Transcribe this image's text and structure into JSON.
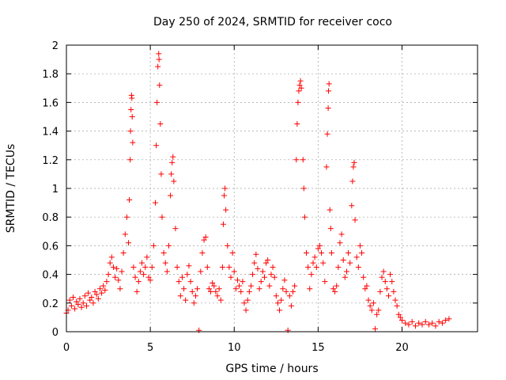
{
  "chart_data": {
    "type": "scatter",
    "title": "Day 250 of 2024, SRMTID for receiver coco",
    "xlabel": "GPS time / hours",
    "ylabel": "SRMTID / TECUs",
    "xlim": [
      0,
      24.5
    ],
    "ylim": [
      0,
      2
    ],
    "xticks": [
      0,
      5,
      10,
      15,
      20
    ],
    "xtick_labels": [
      "0",
      "5",
      "10",
      "15",
      "20"
    ],
    "yticks": [
      0,
      0.2,
      0.4,
      0.6,
      0.8,
      1,
      1.2,
      1.4,
      1.6,
      1.8,
      2
    ],
    "ytick_labels": [
      "0",
      "0.2",
      "0.4",
      "0.6",
      "0.8",
      "1",
      "1.2",
      "1.4",
      "1.6",
      "1.8",
      "2"
    ],
    "grid": true,
    "marker": "plus",
    "color": "#ff0000",
    "series": [
      {
        "name": "SRMTID",
        "points": [
          [
            0.0,
            0.13
          ],
          [
            0.1,
            0.15
          ],
          [
            0.2,
            0.22
          ],
          [
            0.3,
            0.18
          ],
          [
            0.4,
            0.24
          ],
          [
            0.5,
            0.16
          ],
          [
            0.6,
            0.21
          ],
          [
            0.7,
            0.19
          ],
          [
            0.8,
            0.23
          ],
          [
            0.9,
            0.17
          ],
          [
            1.0,
            0.2
          ],
          [
            1.1,
            0.25
          ],
          [
            1.2,
            0.18
          ],
          [
            1.3,
            0.27
          ],
          [
            1.4,
            0.22
          ],
          [
            1.5,
            0.24
          ],
          [
            1.6,
            0.2
          ],
          [
            1.7,
            0.28
          ],
          [
            1.8,
            0.26
          ],
          [
            1.9,
            0.23
          ],
          [
            2.0,
            0.3
          ],
          [
            2.1,
            0.27
          ],
          [
            2.2,
            0.32
          ],
          [
            2.3,
            0.29
          ],
          [
            2.4,
            0.35
          ],
          [
            2.5,
            0.4
          ],
          [
            2.6,
            0.48
          ],
          [
            2.7,
            0.52
          ],
          [
            2.8,
            0.45
          ],
          [
            2.9,
            0.38
          ],
          [
            3.0,
            0.44
          ],
          [
            3.1,
            0.36
          ],
          [
            3.2,
            0.3
          ],
          [
            3.3,
            0.42
          ],
          [
            3.4,
            0.55
          ],
          [
            3.5,
            0.68
          ],
          [
            3.6,
            0.8
          ],
          [
            3.7,
            0.62
          ],
          [
            3.75,
            0.92
          ],
          [
            3.8,
            1.2
          ],
          [
            3.82,
            1.4
          ],
          [
            3.85,
            1.55
          ],
          [
            3.88,
            1.65
          ],
          [
            3.9,
            1.63
          ],
          [
            3.92,
            1.5
          ],
          [
            3.95,
            1.32
          ],
          [
            4.0,
            0.45
          ],
          [
            4.1,
            0.38
          ],
          [
            4.2,
            0.28
          ],
          [
            4.3,
            0.35
          ],
          [
            4.4,
            0.42
          ],
          [
            4.5,
            0.48
          ],
          [
            4.6,
            0.4
          ],
          [
            4.7,
            0.45
          ],
          [
            4.8,
            0.52
          ],
          [
            4.9,
            0.38
          ],
          [
            5.0,
            0.36
          ],
          [
            5.1,
            0.45
          ],
          [
            5.2,
            0.6
          ],
          [
            5.3,
            0.9
          ],
          [
            5.35,
            1.3
          ],
          [
            5.4,
            1.6
          ],
          [
            5.45,
            1.85
          ],
          [
            5.5,
            1.94
          ],
          [
            5.52,
            1.9
          ],
          [
            5.55,
            1.72
          ],
          [
            5.6,
            1.45
          ],
          [
            5.65,
            1.1
          ],
          [
            5.7,
            0.8
          ],
          [
            5.8,
            0.55
          ],
          [
            5.9,
            0.48
          ],
          [
            6.0,
            0.42
          ],
          [
            6.1,
            0.6
          ],
          [
            6.2,
            0.95
          ],
          [
            6.25,
            1.1
          ],
          [
            6.3,
            1.18
          ],
          [
            6.35,
            1.22
          ],
          [
            6.4,
            1.05
          ],
          [
            6.5,
            0.72
          ],
          [
            6.6,
            0.45
          ],
          [
            6.7,
            0.35
          ],
          [
            6.8,
            0.25
          ],
          [
            6.9,
            0.38
          ],
          [
            7.0,
            0.3
          ],
          [
            7.1,
            0.22
          ],
          [
            7.2,
            0.4
          ],
          [
            7.3,
            0.46
          ],
          [
            7.4,
            0.35
          ],
          [
            7.5,
            0.28
          ],
          [
            7.6,
            0.2
          ],
          [
            7.7,
            0.25
          ],
          [
            7.8,
            0.3
          ],
          [
            7.9,
            0.01
          ],
          [
            8.0,
            0.42
          ],
          [
            8.1,
            0.55
          ],
          [
            8.2,
            0.64
          ],
          [
            8.3,
            0.66
          ],
          [
            8.4,
            0.45
          ],
          [
            8.5,
            0.3
          ],
          [
            8.6,
            0.28
          ],
          [
            8.7,
            0.34
          ],
          [
            8.8,
            0.32
          ],
          [
            8.9,
            0.28
          ],
          [
            9.0,
            0.25
          ],
          [
            9.1,
            0.3
          ],
          [
            9.2,
            0.22
          ],
          [
            9.3,
            0.45
          ],
          [
            9.35,
            0.75
          ],
          [
            9.4,
            0.95
          ],
          [
            9.45,
            1.0
          ],
          [
            9.5,
            0.85
          ],
          [
            9.6,
            0.6
          ],
          [
            9.7,
            0.45
          ],
          [
            9.8,
            0.38
          ],
          [
            9.9,
            0.55
          ],
          [
            10.0,
            0.42
          ],
          [
            10.1,
            0.3
          ],
          [
            10.2,
            0.36
          ],
          [
            10.3,
            0.32
          ],
          [
            10.4,
            0.28
          ],
          [
            10.5,
            0.35
          ],
          [
            10.6,
            0.2
          ],
          [
            10.7,
            0.15
          ],
          [
            10.8,
            0.22
          ],
          [
            10.9,
            0.28
          ],
          [
            11.0,
            0.32
          ],
          [
            11.1,
            0.4
          ],
          [
            11.2,
            0.48
          ],
          [
            11.3,
            0.54
          ],
          [
            11.4,
            0.44
          ],
          [
            11.5,
            0.3
          ],
          [
            11.6,
            0.35
          ],
          [
            11.7,
            0.42
          ],
          [
            11.8,
            0.38
          ],
          [
            11.9,
            0.48
          ],
          [
            12.0,
            0.5
          ],
          [
            12.1,
            0.32
          ],
          [
            12.2,
            0.4
          ],
          [
            12.3,
            0.45
          ],
          [
            12.4,
            0.38
          ],
          [
            12.5,
            0.25
          ],
          [
            12.6,
            0.2
          ],
          [
            12.7,
            0.15
          ],
          [
            12.8,
            0.22
          ],
          [
            12.9,
            0.3
          ],
          [
            13.0,
            0.36
          ],
          [
            13.1,
            0.28
          ],
          [
            13.2,
            0.01
          ],
          [
            13.3,
            0.25
          ],
          [
            13.4,
            0.18
          ],
          [
            13.5,
            0.28
          ],
          [
            13.6,
            0.32
          ],
          [
            13.7,
            1.2
          ],
          [
            13.75,
            1.45
          ],
          [
            13.8,
            1.6
          ],
          [
            13.85,
            1.68
          ],
          [
            13.9,
            1.72
          ],
          [
            13.95,
            1.75
          ],
          [
            14.0,
            1.7
          ],
          [
            14.1,
            1.2
          ],
          [
            14.15,
            1.0
          ],
          [
            14.2,
            0.8
          ],
          [
            14.3,
            0.55
          ],
          [
            14.4,
            0.45
          ],
          [
            14.5,
            0.3
          ],
          [
            14.6,
            0.4
          ],
          [
            14.7,
            0.48
          ],
          [
            14.8,
            0.52
          ],
          [
            14.9,
            0.45
          ],
          [
            15.0,
            0.58
          ],
          [
            15.1,
            0.6
          ],
          [
            15.2,
            0.55
          ],
          [
            15.3,
            0.48
          ],
          [
            15.4,
            0.35
          ],
          [
            15.5,
            1.15
          ],
          [
            15.55,
            1.38
          ],
          [
            15.6,
            1.56
          ],
          [
            15.62,
            1.68
          ],
          [
            15.65,
            1.73
          ],
          [
            15.7,
            0.85
          ],
          [
            15.75,
            0.72
          ],
          [
            15.8,
            0.55
          ],
          [
            15.9,
            0.3
          ],
          [
            16.0,
            0.28
          ],
          [
            16.1,
            0.32
          ],
          [
            16.2,
            0.45
          ],
          [
            16.3,
            0.62
          ],
          [
            16.4,
            0.68
          ],
          [
            16.5,
            0.5
          ],
          [
            16.6,
            0.38
          ],
          [
            16.7,
            0.42
          ],
          [
            16.8,
            0.55
          ],
          [
            16.9,
            0.48
          ],
          [
            17.0,
            0.88
          ],
          [
            17.05,
            1.05
          ],
          [
            17.1,
            1.15
          ],
          [
            17.15,
            1.18
          ],
          [
            17.2,
            0.78
          ],
          [
            17.3,
            0.52
          ],
          [
            17.4,
            0.45
          ],
          [
            17.5,
            0.6
          ],
          [
            17.6,
            0.55
          ],
          [
            17.7,
            0.38
          ],
          [
            17.8,
            0.3
          ],
          [
            17.9,
            0.32
          ],
          [
            18.0,
            0.22
          ],
          [
            18.1,
            0.18
          ],
          [
            18.2,
            0.15
          ],
          [
            18.3,
            0.2
          ],
          [
            18.4,
            0.02
          ],
          [
            18.5,
            0.12
          ],
          [
            18.6,
            0.15
          ],
          [
            18.7,
            0.28
          ],
          [
            18.8,
            0.38
          ],
          [
            18.9,
            0.42
          ],
          [
            19.0,
            0.35
          ],
          [
            19.1,
            0.3
          ],
          [
            19.2,
            0.25
          ],
          [
            19.3,
            0.4
          ],
          [
            19.4,
            0.35
          ],
          [
            19.5,
            0.28
          ],
          [
            19.6,
            0.22
          ],
          [
            19.7,
            0.18
          ],
          [
            19.8,
            0.12
          ],
          [
            19.9,
            0.1
          ],
          [
            20.0,
            0.08
          ],
          [
            20.2,
            0.06
          ],
          [
            20.4,
            0.05
          ],
          [
            20.6,
            0.07
          ],
          [
            20.8,
            0.04
          ],
          [
            21.0,
            0.06
          ],
          [
            21.2,
            0.05
          ],
          [
            21.4,
            0.07
          ],
          [
            21.6,
            0.05
          ],
          [
            21.8,
            0.06
          ],
          [
            22.0,
            0.04
          ],
          [
            22.2,
            0.07
          ],
          [
            22.4,
            0.06
          ],
          [
            22.6,
            0.08
          ],
          [
            22.8,
            0.09
          ]
        ]
      }
    ]
  }
}
